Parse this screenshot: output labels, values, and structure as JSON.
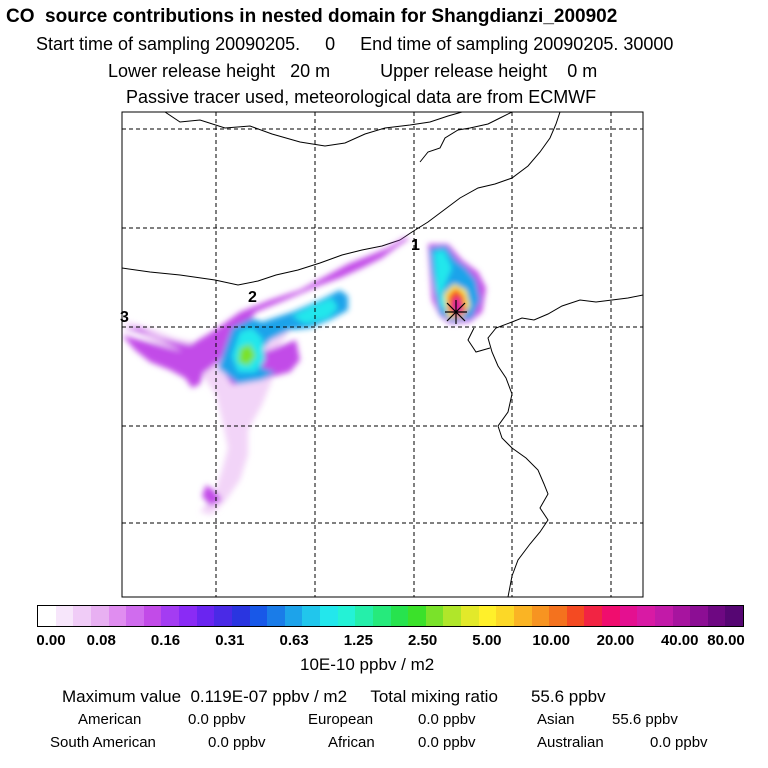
{
  "header": {
    "title": "CO  source contributions in nested domain for Shangdianzi_200902",
    "line1": "Start time of sampling 20090205.     0     End time of sampling 20090205. 30000",
    "line2": "Lower release height   20 m          Upper release height    0 m",
    "line3": "Passive tracer used, meteorological data are from ECMWF"
  },
  "map": {
    "markers": [
      "1",
      "2",
      "3"
    ],
    "receptor_symbol": "asterisk"
  },
  "colorbar": {
    "tick_labels": [
      "0.00",
      "0.08",
      "0.16",
      "0.31",
      "0.63",
      "1.25",
      "2.50",
      "5.00",
      "10.00",
      "20.00",
      "40.00",
      "80.00"
    ],
    "unit_label": "10E-10 ppbv / m2",
    "colors": [
      "#ffffff",
      "#f7e6fb",
      "#f0ccf7",
      "#e8b0f2",
      "#e08df0",
      "#d06cee",
      "#c24be8",
      "#a43cf2",
      "#8a2bf5",
      "#6a25f0",
      "#4a2ae6",
      "#2a35e0",
      "#1858e8",
      "#1a7ce8",
      "#1da3ea",
      "#21c6ec",
      "#23e7ec",
      "#24f2d6",
      "#25efaa",
      "#26ea7c",
      "#27e34e",
      "#3be12a",
      "#7ae22a",
      "#b0e62a",
      "#e2e92a",
      "#fff02a",
      "#fcd827",
      "#fab424",
      "#f79421",
      "#f4721e",
      "#f44a22",
      "#f22443",
      "#f00d6e",
      "#e41090",
      "#d81aa4",
      "#c21aa8",
      "#a7149f",
      "#8c0e94",
      "#6e0882",
      "#560673"
    ]
  },
  "stats": {
    "max_label": "Maximum value  0.119E-07 ppbv / m2     Total mixing ratio       55.6 ppbv",
    "regions": [
      {
        "name": "American",
        "value": "0.0 ppbv"
      },
      {
        "name": "European",
        "value": "0.0 ppbv"
      },
      {
        "name": "Asian",
        "value": "55.6 ppbv"
      },
      {
        "name": "South American",
        "value": "0.0 ppbv"
      },
      {
        "name": "African",
        "value": "0.0 ppbv"
      },
      {
        "name": "Australian",
        "value": "0.0 ppbv"
      }
    ]
  }
}
